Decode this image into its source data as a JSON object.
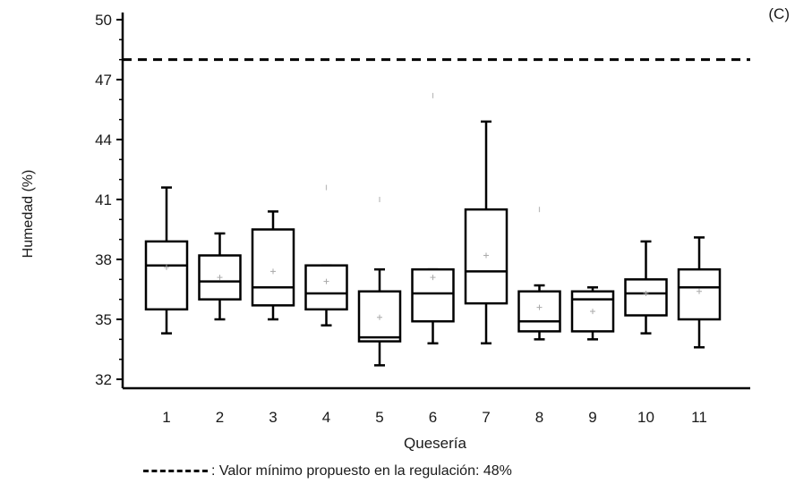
{
  "panel_label": "(C)",
  "legend_text": ": Valor mínimo propuesto en la regulación: 48%",
  "chart_data": {
    "type": "boxplot",
    "title": "",
    "xlabel": "Quesería",
    "ylabel": "Humedad (%)",
    "ylim": [
      32,
      50
    ],
    "yticks": [
      32,
      35,
      38,
      41,
      44,
      47,
      50
    ],
    "categories": [
      "1",
      "2",
      "3",
      "4",
      "5",
      "6",
      "7",
      "8",
      "9",
      "10",
      "11"
    ],
    "reference_line": 48,
    "boxes": [
      {
        "min": 34.3,
        "q1": 35.5,
        "median": 37.7,
        "q3": 38.9,
        "max": 41.6,
        "mean": 37.6
      },
      {
        "min": 35.0,
        "q1": 36.0,
        "median": 36.9,
        "q3": 38.2,
        "max": 39.3,
        "mean": 37.1
      },
      {
        "min": 35.0,
        "q1": 35.7,
        "median": 36.6,
        "q3": 39.5,
        "max": 40.4,
        "mean": 37.4
      },
      {
        "min": 34.7,
        "q1": 35.5,
        "median": 36.3,
        "q3": 37.7,
        "max": 37.7,
        "mean": 36.9
      },
      {
        "min": 32.7,
        "q1": 33.9,
        "median": 34.1,
        "q3": 36.4,
        "max": 37.5,
        "mean": 35.1
      },
      {
        "min": 33.8,
        "q1": 34.9,
        "median": 36.3,
        "q3": 37.5,
        "max": 37.5,
        "mean": 37.1
      },
      {
        "min": 33.8,
        "q1": 35.8,
        "median": 37.4,
        "q3": 40.5,
        "max": 44.9,
        "mean": 38.2
      },
      {
        "min": 34.0,
        "q1": 34.4,
        "median": 34.9,
        "q3": 36.4,
        "max": 36.7,
        "mean": 35.6
      },
      {
        "min": 34.0,
        "q1": 34.4,
        "median": 36.0,
        "q3": 36.4,
        "max": 36.6,
        "mean": 35.4
      },
      {
        "min": 34.3,
        "q1": 35.2,
        "median": 36.3,
        "q3": 37.0,
        "max": 38.9,
        "mean": 36.3
      },
      {
        "min": 33.6,
        "q1": 35.0,
        "median": 36.6,
        "q3": 37.5,
        "max": 39.1,
        "mean": 36.4
      }
    ],
    "outliers": [
      {
        "category": "4",
        "value": 41.6
      },
      {
        "category": "5",
        "value": 41.0
      },
      {
        "category": "6",
        "value": 46.2
      },
      {
        "category": "8",
        "value": 40.5
      }
    ],
    "grid": false,
    "legend_position": "bottom"
  }
}
